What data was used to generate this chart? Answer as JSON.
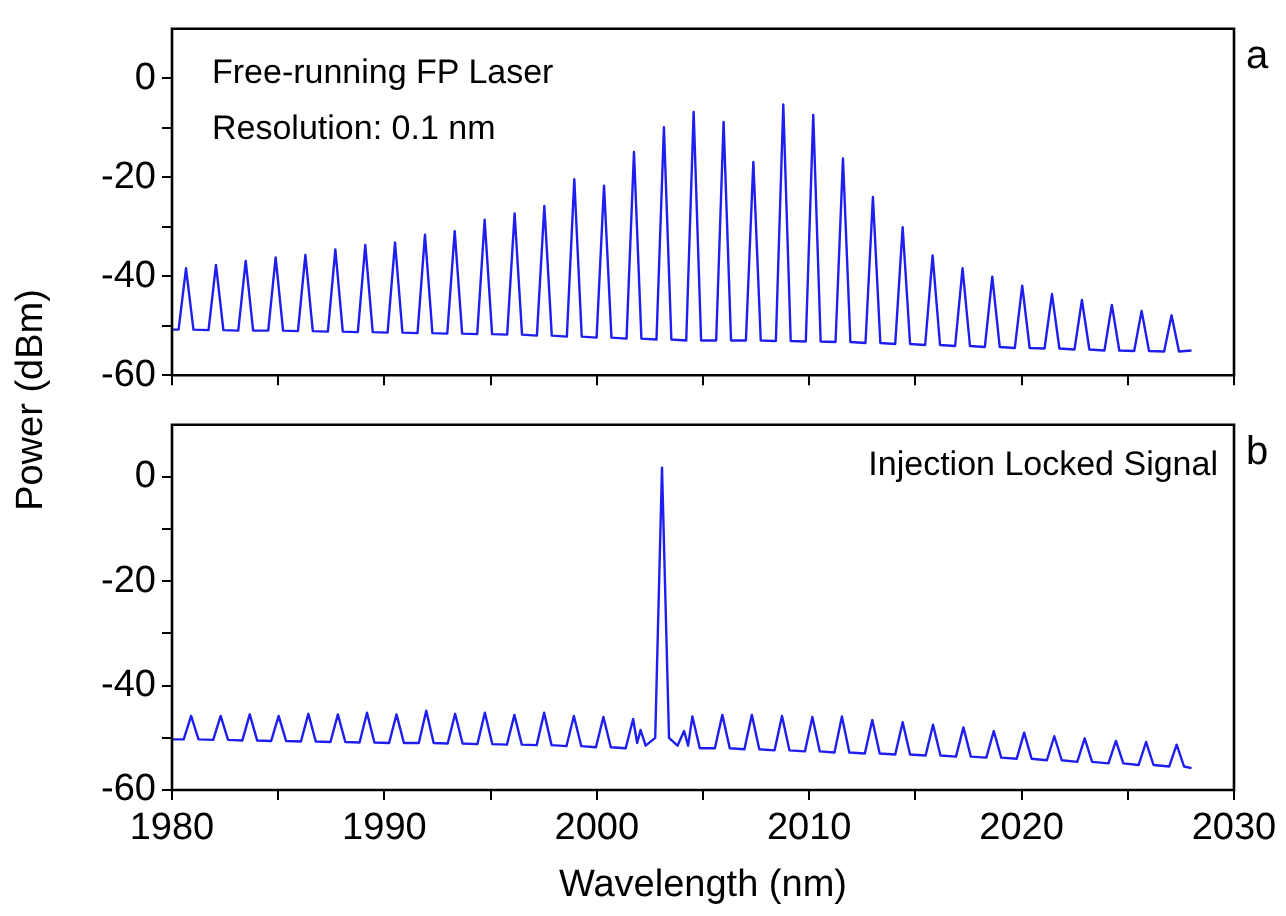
{
  "chart_data": [
    {
      "type": "line",
      "ylabel": "Power (dBm)",
      "annotations": [
        "Free-running FP Laser",
        "Resolution: 0.1 nm",
        "a"
      ],
      "xlim": [
        1980,
        2030
      ],
      "ylim": [
        -60,
        10
      ],
      "tick_labels": "y",
      "grid": false,
      "legend": false,
      "marker": "none",
      "line_style": "solid",
      "xticks": [
        1980,
        {
          "value": 1985,
          "label": null
        },
        1990,
        {
          "value": 1995,
          "label": null
        },
        2000,
        {
          "value": 2005,
          "label": null
        },
        2010,
        {
          "value": 2015,
          "label": null
        },
        2020,
        {
          "value": 2025,
          "label": null
        },
        2030
      ],
      "yticks": [
        -60,
        {
          "value": -50,
          "label": null
        },
        -40,
        {
          "value": -30,
          "label": null
        },
        -20,
        {
          "value": -10,
          "label": null
        },
        0
      ],
      "series": [
        {
          "color": "#1e1ef0",
          "x": [
            1980.0,
            1980.31,
            1980.66,
            1981.01,
            1981.72,
            1982.07,
            1982.42,
            1983.12,
            1983.47,
            1983.82,
            1984.53,
            1984.88,
            1985.23,
            1985.93,
            1986.28,
            1986.63,
            1987.34,
            1987.69,
            1988.04,
            1988.75,
            1989.1,
            1989.45,
            1990.15,
            1990.5,
            1990.85,
            1991.56,
            1991.91,
            1992.26,
            1992.96,
            1993.31,
            1993.66,
            1994.37,
            1994.72,
            1995.07,
            1995.78,
            1996.13,
            1996.48,
            1997.18,
            1997.53,
            1997.88,
            1998.59,
            1998.94,
            1999.29,
            1999.99,
            2000.34,
            2000.69,
            2001.4,
            2001.75,
            2002.1,
            2002.81,
            2003.16,
            2003.51,
            2004.21,
            2004.56,
            2004.91,
            2005.62,
            2005.97,
            2006.32,
            2007.02,
            2007.37,
            2007.72,
            2008.43,
            2008.78,
            2009.13,
            2009.84,
            2010.19,
            2010.54,
            2011.24,
            2011.59,
            2011.94,
            2012.65,
            2013.0,
            2013.35,
            2014.05,
            2014.4,
            2014.75,
            2015.46,
            2015.81,
            2016.16,
            2016.87,
            2017.22,
            2017.57,
            2018.27,
            2018.62,
            2018.97,
            2019.68,
            2020.03,
            2020.38,
            2021.08,
            2021.43,
            2021.78,
            2022.49,
            2022.84,
            2023.19,
            2023.9,
            2024.25,
            2024.6,
            2025.3,
            2025.65,
            2026.0,
            2026.71,
            2027.06,
            2027.41,
            2028.0
          ],
          "values": [
            -50.8,
            -50.8,
            -38.4,
            -50.8,
            -50.9,
            -37.7,
            -50.9,
            -51.0,
            -36.9,
            -51.0,
            -51.0,
            -36.2,
            -51.0,
            -51.1,
            -35.7,
            -51.1,
            -51.2,
            -34.6,
            -51.2,
            -51.3,
            -33.7,
            -51.3,
            -51.4,
            -33.2,
            -51.4,
            -51.5,
            -31.6,
            -51.5,
            -51.6,
            -30.9,
            -51.6,
            -51.7,
            -28.6,
            -51.7,
            -51.8,
            -27.3,
            -51.8,
            -52.0,
            -25.8,
            -52.0,
            -52.2,
            -20.4,
            -52.2,
            -52.4,
            -21.7,
            -52.4,
            -52.6,
            -14.9,
            -52.6,
            -52.8,
            -9.9,
            -52.8,
            -53.0,
            -6.8,
            -53.0,
            -53.0,
            -8.8,
            -53.0,
            -53.0,
            -16.9,
            -53.0,
            -53.1,
            -5.3,
            -53.1,
            -53.2,
            -7.4,
            -53.2,
            -53.3,
            -16.2,
            -53.3,
            -53.5,
            -24.0,
            -53.5,
            -53.7,
            -30.1,
            -53.7,
            -53.9,
            -35.8,
            -53.9,
            -54.1,
            -38.4,
            -54.1,
            -54.3,
            -40.1,
            -54.3,
            -54.5,
            -41.9,
            -54.5,
            -54.6,
            -43.6,
            -54.6,
            -54.8,
            -44.8,
            -54.8,
            -55.0,
            -45.8,
            -55.0,
            -55.1,
            -47.0,
            -55.1,
            -55.2,
            -47.9,
            -55.2,
            -55.0
          ]
        }
      ]
    },
    {
      "type": "line",
      "xlabel": "Wavelength (nm)",
      "annotations": [
        "Injection Locked Signal",
        "b"
      ],
      "xlim": [
        1980,
        2030
      ],
      "ylim": [
        -60,
        10
      ],
      "grid": false,
      "legend": false,
      "marker": "none",
      "line_style": "solid",
      "xticks": [
        1980,
        {
          "value": 1985,
          "label": null
        },
        1990,
        {
          "value": 1995,
          "label": null
        },
        2000,
        {
          "value": 2005,
          "label": null
        },
        2010,
        {
          "value": 2015,
          "label": null
        },
        2020,
        {
          "value": 2025,
          "label": null
        },
        2030
      ],
      "yticks": [
        -60,
        {
          "value": -50,
          "label": null
        },
        -40,
        {
          "value": -30,
          "label": null
        },
        -20,
        {
          "value": -10,
          "label": null
        },
        0
      ],
      "series": [
        {
          "color": "#1e1ef0",
          "x": [
            1980.0,
            1980.55,
            1980.9,
            1981.25,
            1981.94,
            1982.29,
            1982.64,
            1983.31,
            1983.66,
            1984.01,
            1984.67,
            1985.02,
            1985.37,
            1986.07,
            1986.42,
            1986.77,
            1987.46,
            1987.81,
            1988.16,
            1988.83,
            1989.18,
            1989.53,
            1990.22,
            1990.57,
            1990.92,
            1991.62,
            1991.97,
            1992.32,
            1992.98,
            1993.33,
            1993.68,
            1994.38,
            1994.73,
            1995.08,
            1995.77,
            1996.12,
            1996.47,
            1997.17,
            1997.52,
            1997.87,
            1998.57,
            1998.92,
            1999.27,
            1999.96,
            2000.31,
            2000.66,
            2001.36,
            2001.71,
            2001.9,
            2002.06,
            2002.3,
            2002.75,
            2003.07,
            2003.4,
            2003.8,
            2004.11,
            2004.3,
            2004.5,
            2004.85,
            2005.56,
            2005.91,
            2006.26,
            2006.95,
            2007.3,
            2007.65,
            2008.37,
            2008.72,
            2009.07,
            2009.8,
            2010.15,
            2010.5,
            2011.19,
            2011.54,
            2011.89,
            2012.62,
            2012.97,
            2013.32,
            2014.05,
            2014.4,
            2014.75,
            2015.48,
            2015.83,
            2016.18,
            2016.91,
            2017.26,
            2017.61,
            2018.34,
            2018.69,
            2019.04,
            2019.77,
            2020.12,
            2020.47,
            2021.19,
            2021.54,
            2021.89,
            2022.62,
            2022.97,
            2023.32,
            2024.09,
            2024.44,
            2024.79,
            2025.51,
            2025.86,
            2026.21,
            2026.95,
            2027.3,
            2027.65,
            2028.0
          ],
          "values": [
            -50.3,
            -50.3,
            -45.8,
            -50.3,
            -50.4,
            -45.8,
            -50.4,
            -50.5,
            -45.5,
            -50.5,
            -50.6,
            -45.8,
            -50.6,
            -50.7,
            -45.4,
            -50.7,
            -50.8,
            -45.5,
            -50.8,
            -50.9,
            -45.2,
            -50.9,
            -51.0,
            -45.5,
            -51.0,
            -51.0,
            -44.8,
            -51.0,
            -51.1,
            -45.4,
            -51.1,
            -51.2,
            -45.2,
            -51.2,
            -51.3,
            -45.6,
            -51.3,
            -51.4,
            -45.2,
            -51.4,
            -51.6,
            -45.8,
            -51.6,
            -51.8,
            -46.0,
            -51.8,
            -52.0,
            -46.4,
            -51.0,
            -48.5,
            -51.5,
            -50.0,
            1.8,
            -50.0,
            -51.5,
            -48.7,
            -51.5,
            -45.9,
            -52.0,
            -52.0,
            -45.6,
            -52.0,
            -52.2,
            -45.6,
            -52.2,
            -52.4,
            -45.8,
            -52.4,
            -52.6,
            -46.0,
            -52.6,
            -52.8,
            -45.9,
            -52.8,
            -53.0,
            -46.6,
            -53.0,
            -53.2,
            -47.0,
            -53.2,
            -53.4,
            -47.5,
            -53.4,
            -53.6,
            -48.0,
            -53.6,
            -53.8,
            -48.7,
            -53.8,
            -54.0,
            -49.0,
            -54.0,
            -54.3,
            -49.7,
            -54.3,
            -54.6,
            -50.1,
            -54.6,
            -54.9,
            -50.6,
            -54.9,
            -55.2,
            -50.8,
            -55.2,
            -55.5,
            -51.3,
            -55.5,
            -55.8
          ]
        }
      ]
    }
  ]
}
